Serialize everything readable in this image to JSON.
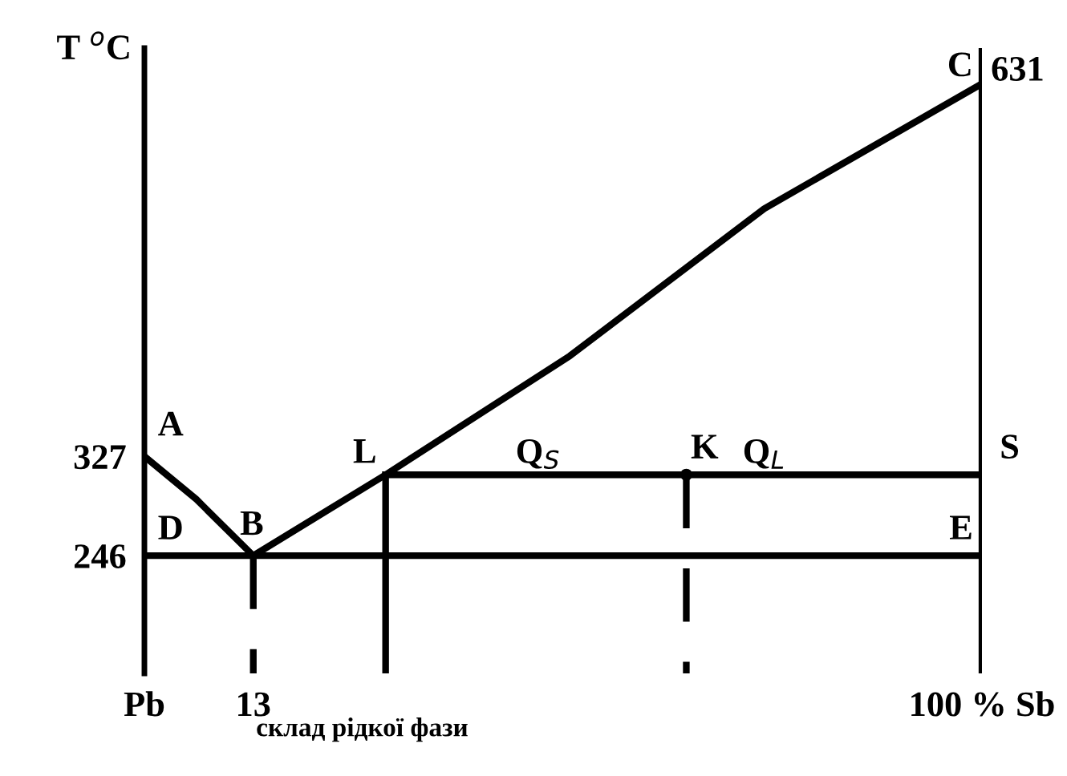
{
  "chart_data": {
    "type": "line",
    "ylabel": "T $^{o}$C",
    "xlim": [
      0,
      100
    ],
    "xticks": [
      {
        "value": 0,
        "label": "Pb"
      },
      13,
      {
        "value": 100,
        "label": "100 % Sb"
      }
    ],
    "ylim": [
      150,
      660
    ],
    "yticks": [
      246,
      327
    ],
    "ref_lines": [
      {
        "axis": "x",
        "value": 100
      }
    ],
    "tick_labels": "xy",
    "grid": false,
    "legend": false,
    "series": [
      {
        "color": "#000000",
        "x": [
          0,
          6.2,
          13
        ],
        "values": [
          327,
          292,
          246
        ]
      },
      {
        "color": "#000000",
        "x": [
          13,
          28.8,
          50.8,
          74,
          100
        ],
        "values": [
          246,
          312,
          409,
          529,
          631
        ]
      },
      {
        "color": "#000000",
        "x": [
          0,
          100
        ],
        "values": [
          246,
          246
        ]
      },
      {
        "color": "#000000",
        "x": [
          13,
          13
        ],
        "values": [
          246,
          150
        ],
        "line_style": "dashed"
      },
      {
        "color": "#000000",
        "x": [
          64.7,
          64.7
        ],
        "values": [
          312,
          150
        ],
        "line_style": "dashed"
      },
      {
        "color": "#000000",
        "x": [
          28.8,
          28.8
        ],
        "values": [
          312,
          150
        ]
      },
      {
        "color": "#000000",
        "x": [
          28.8,
          100
        ],
        "values": [
          312,
          312
        ]
      },
      {
        "type": "scatter",
        "color": "#000000",
        "x": [
          64.7
        ],
        "values": [
          312
        ]
      }
    ],
    "annotations": [
      {
        "text": "A",
        "x": 0,
        "y": 327
      },
      {
        "text": "B",
        "x": 13,
        "y": 246
      },
      {
        "text": "C",
        "x": 100,
        "y": 631
      },
      {
        "text": "D",
        "x": 0,
        "y": 246
      },
      {
        "text": "E",
        "x": 100,
        "y": 246
      },
      {
        "text": "L",
        "x": 28.8,
        "y": 312
      },
      {
        "text": "K",
        "x": 64.7,
        "y": 312
      },
      {
        "text": "S",
        "x": 100,
        "y": 312
      },
      {
        "text": "631",
        "x": 100,
        "y": 631
      },
      "Q$_{S}$",
      "Q$_{L}$",
      "склад рідкої фази"
    ]
  }
}
